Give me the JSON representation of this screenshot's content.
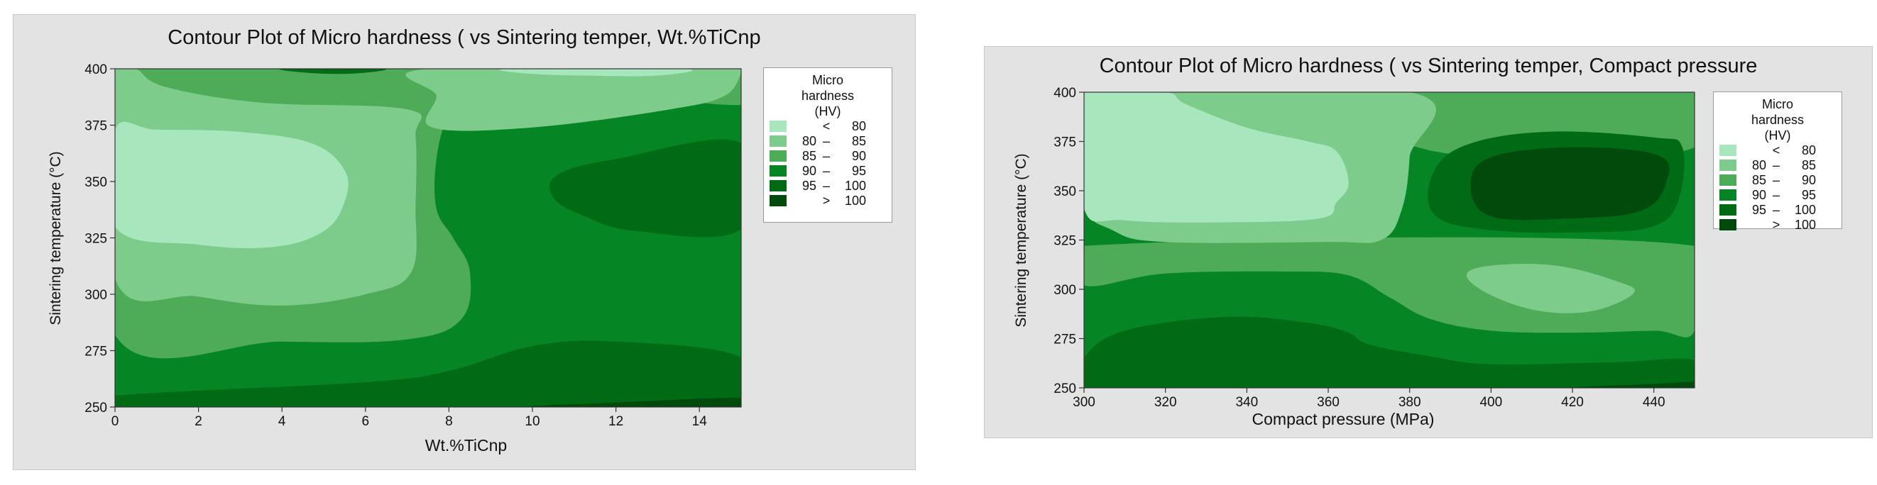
{
  "chart_data": [
    {
      "type": "contour",
      "title": "Contour Plot of Micro hardness ( vs Sintering temper, Wt.%TiCnp",
      "xlabel": "Wt.%TiCnp",
      "ylabel": "Sintering temperature (°C)",
      "xlim": [
        0,
        15
      ],
      "ylim": [
        250,
        400
      ],
      "xticks": [
        0,
        2,
        4,
        6,
        8,
        10,
        12,
        14
      ],
      "yticks": [
        250,
        275,
        300,
        325,
        350,
        375,
        400
      ],
      "legend": {
        "title": [
          "Micro",
          "hardness",
          "(HV)"
        ],
        "position": "right",
        "levels": [
          {
            "lo": "",
            "op": "<",
            "hi": "80",
            "color": "#a8e6be"
          },
          {
            "lo": "80",
            "op": "–",
            "hi": "85",
            "color": "#7dcc8c"
          },
          {
            "lo": "85",
            "op": "–",
            "hi": "90",
            "color": "#4eab57"
          },
          {
            "lo": "90",
            "op": "–",
            "hi": "95",
            "color": "#068525"
          },
          {
            "lo": "95",
            "op": "–",
            "hi": "100",
            "color": "#006a14"
          },
          {
            "lo": "",
            "op": ">",
            "hi": "100",
            "color": "#004a0c"
          }
        ]
      },
      "regions": [
        {
          "level": 3,
          "points": [
            [
              0,
              250
            ],
            [
              15,
              250
            ],
            [
              15,
              400
            ],
            [
              0,
              400
            ]
          ]
        },
        {
          "level": 4,
          "points": [
            [
              0,
              250
            ],
            [
              15,
              250
            ],
            [
              15,
              272
            ],
            [
              12,
              279
            ],
            [
              10,
              277
            ],
            [
              8,
              266
            ],
            [
              6,
              261
            ],
            [
              0,
              255
            ]
          ]
        },
        {
          "level": 5,
          "points": [
            [
              10,
              250
            ],
            [
              15,
              250
            ],
            [
              15,
              254
            ],
            [
              12,
              252
            ]
          ]
        },
        {
          "level": 2,
          "points": [
            [
              0,
              282
            ],
            [
              4,
              279
            ],
            [
              7,
              280
            ],
            [
              8.3,
              289
            ],
            [
              8.5,
              310
            ],
            [
              8.1,
              325
            ],
            [
              7.7,
              338
            ],
            [
              7.7,
              360
            ],
            [
              8,
              380
            ],
            [
              8.6,
              393
            ],
            [
              8.6,
              400
            ],
            [
              0,
              400
            ]
          ]
        },
        {
          "level": 2,
          "points": [
            [
              10.5,
              400
            ],
            [
              10.8,
              394
            ],
            [
              15,
              384
            ],
            [
              15,
              400
            ]
          ]
        },
        {
          "level": 1,
          "points": [
            [
              0,
              307
            ],
            [
              2,
              299
            ],
            [
              4,
              295
            ],
            [
              6,
              300
            ],
            [
              7.1,
              310
            ],
            [
              7.2,
              340
            ],
            [
              7.2,
              370
            ],
            [
              7,
              382
            ],
            [
              3.5,
              385
            ],
            [
              1.2,
              392
            ],
            [
              0.5,
              400
            ],
            [
              0,
              400
            ]
          ]
        },
        {
          "level": 1,
          "points": [
            [
              7.5,
              400
            ],
            [
              7.7,
              388
            ],
            [
              7.6,
              374
            ],
            [
              10,
              374
            ],
            [
              13.3,
              382
            ],
            [
              14.6,
              388
            ],
            [
              15,
              398
            ],
            [
              15,
              400
            ]
          ]
        },
        {
          "level": 0,
          "points": [
            [
              0,
              330
            ],
            [
              2,
              322
            ],
            [
              3.8,
              321
            ],
            [
              5,
              328
            ],
            [
              5.5,
              341
            ],
            [
              5.5,
              355
            ],
            [
              4.7,
              367
            ],
            [
              3,
              372
            ],
            [
              1,
              373
            ],
            [
              0,
              373
            ]
          ]
        },
        {
          "level": 0,
          "points": [
            [
              9.5,
              400
            ],
            [
              9.8,
              398
            ],
            [
              11.2,
              397
            ],
            [
              13,
              397
            ],
            [
              13.6,
              400
            ]
          ]
        },
        {
          "level": 4,
          "points": [
            [
              15,
              367
            ],
            [
              12,
              360
            ],
            [
              10.6,
              353
            ],
            [
              10.5,
              343
            ],
            [
              11.2,
              335
            ],
            [
              12.5,
              328
            ],
            [
              15,
              329
            ]
          ]
        },
        {
          "level": 4,
          "points": [
            [
              4,
              400
            ],
            [
              4.8,
              398
            ],
            [
              5.8,
              398
            ],
            [
              6.4,
              400
            ]
          ]
        }
      ]
    },
    {
      "type": "contour",
      "title": "Contour Plot of Micro hardness ( vs Sintering temper, Compact pressure",
      "xlabel": "Compact pressure (MPa)",
      "ylabel": "Sintering temperature (°C)",
      "xlim": [
        300,
        450
      ],
      "ylim": [
        250,
        400
      ],
      "xticks": [
        300,
        320,
        340,
        360,
        380,
        400,
        420,
        440
      ],
      "yticks": [
        250,
        275,
        300,
        325,
        350,
        375,
        400
      ],
      "legend": {
        "title": [
          "Micro",
          "hardness",
          "(HV)"
        ],
        "position": "right",
        "levels": [
          {
            "lo": "",
            "op": "<",
            "hi": "80",
            "color": "#a8e6be"
          },
          {
            "lo": "80",
            "op": "–",
            "hi": "85",
            "color": "#7dcc8c"
          },
          {
            "lo": "85",
            "op": "–",
            "hi": "90",
            "color": "#4eab57"
          },
          {
            "lo": "90",
            "op": "–",
            "hi": "95",
            "color": "#068525"
          },
          {
            "lo": "95",
            "op": "–",
            "hi": "100",
            "color": "#006a14"
          },
          {
            "lo": "",
            "op": ">",
            "hi": "100",
            "color": "#004a0c"
          }
        ]
      },
      "regions": [
        {
          "level": 3,
          "points": [
            [
              300,
              250
            ],
            [
              450,
              250
            ],
            [
              450,
              400
            ],
            [
              300,
              400
            ]
          ]
        },
        {
          "level": 2,
          "points": [
            [
              300,
              302
            ],
            [
              320,
              308
            ],
            [
              350,
              309
            ],
            [
              365,
              307
            ],
            [
              375,
              296
            ],
            [
              385,
              285
            ],
            [
              400,
              279
            ],
            [
              420,
              278
            ],
            [
              440,
              279
            ],
            [
              450,
              279
            ],
            [
              450,
              322
            ],
            [
              300,
              322
            ]
          ]
        },
        {
          "level": 2,
          "points": [
            [
              380,
              400
            ],
            [
              381,
              376
            ],
            [
              382,
              372
            ],
            [
              395,
              368
            ],
            [
              420,
              369
            ],
            [
              450,
              372
            ],
            [
              450,
              400
            ]
          ]
        },
        {
          "level": 4,
          "points": [
            [
              300,
              265
            ],
            [
              310,
              279
            ],
            [
              335,
              286
            ],
            [
              355,
              283
            ],
            [
              365,
              278
            ],
            [
              370,
              272
            ],
            [
              385,
              266
            ],
            [
              400,
              262
            ],
            [
              430,
              263
            ],
            [
              450,
              264
            ],
            [
              450,
              250
            ],
            [
              300,
              250
            ]
          ]
        },
        {
          "level": 4,
          "points": [
            [
              386,
              360
            ],
            [
              395,
              374
            ],
            [
              415,
              380
            ],
            [
              440,
              377
            ],
            [
              447,
              372
            ],
            [
              446,
              345
            ],
            [
              440,
              332
            ],
            [
              425,
              329
            ],
            [
              400,
              330
            ],
            [
              386,
              338
            ]
          ]
        },
        {
          "level": 5,
          "points": [
            [
              395,
              353
            ],
            [
              400,
              367
            ],
            [
              420,
              372
            ],
            [
              441,
              368
            ],
            [
              443,
              354
            ],
            [
              437,
              340
            ],
            [
              420,
              336
            ],
            [
              400,
              337
            ]
          ]
        },
        {
          "level": 5,
          "points": [
            [
              420,
              250
            ],
            [
              450,
              250
            ],
            [
              450,
              253
            ],
            [
              440,
              252
            ]
          ]
        },
        {
          "level": 5,
          "points": [
            [
              331,
              400
            ],
            [
              333,
              398
            ],
            [
              360,
              398
            ],
            [
              363,
              400
            ]
          ]
        },
        {
          "level": 1,
          "points": [
            [
              300,
              345
            ],
            [
              307,
              330
            ],
            [
              320,
              324
            ],
            [
              360,
              324
            ],
            [
              373,
              325
            ],
            [
              378,
              340
            ],
            [
              380,
              367
            ],
            [
              380,
              400
            ],
            [
              300,
              400
            ]
          ]
        },
        {
          "level": 1,
          "points": [
            [
              394,
              307
            ],
            [
              400,
              297
            ],
            [
              412,
              289
            ],
            [
              425,
              289
            ],
            [
              435,
              298
            ],
            [
              431,
              304
            ],
            [
              416,
              312
            ],
            [
              400,
              312
            ]
          ]
        },
        {
          "level": 0,
          "points": [
            [
              300,
              396
            ],
            [
              300,
              341
            ],
            [
              310,
              335
            ],
            [
              335,
              334
            ],
            [
              358,
              336
            ],
            [
              362,
              344
            ],
            [
              365,
              354
            ],
            [
              362,
              370
            ],
            [
              355,
              375
            ],
            [
              340,
              382
            ],
            [
              325,
              394
            ],
            [
              320,
              400
            ],
            [
              303,
              400
            ]
          ]
        }
      ]
    }
  ]
}
